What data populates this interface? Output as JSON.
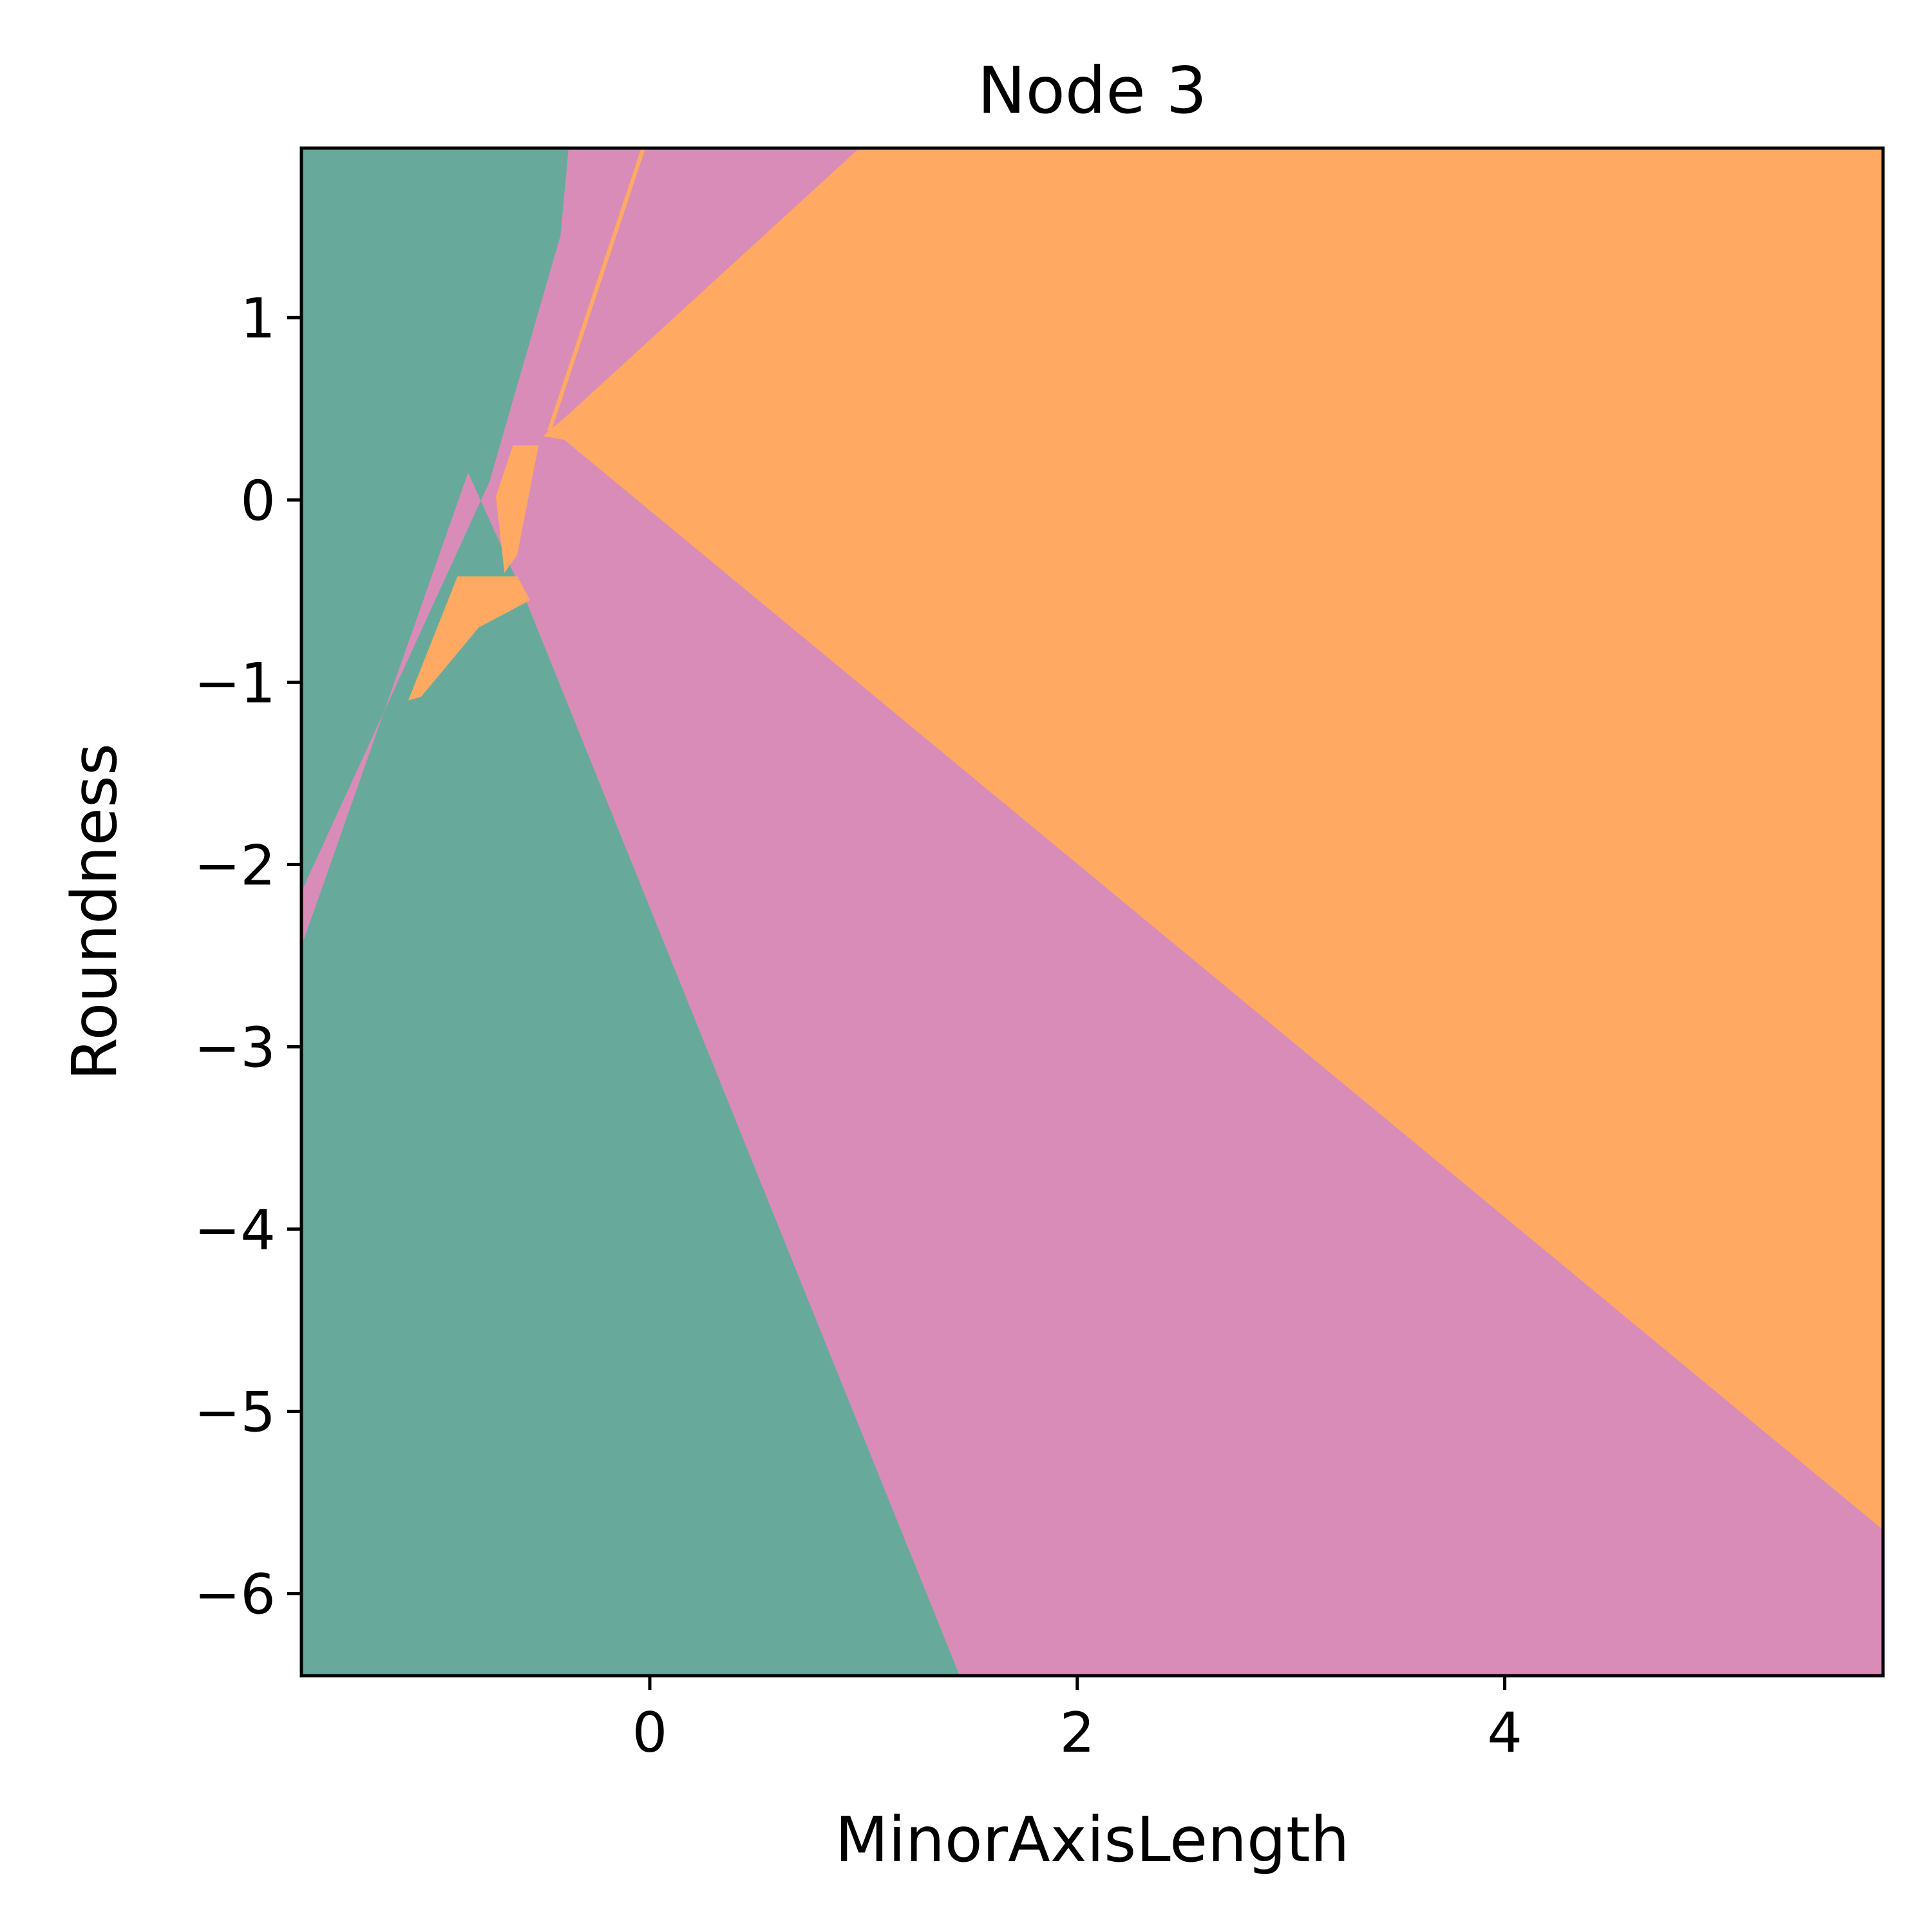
{
  "chart_data": {
    "type": "heatmap",
    "title": "Node 3",
    "xlabel": "MinorAxisLength",
    "ylabel": "Roundness",
    "xlim": [
      -1.63,
      5.77
    ],
    "ylim": [
      -6.45,
      1.93
    ],
    "x_ticks": [
      {
        "value": 0,
        "label": "0"
      },
      {
        "value": 2,
        "label": "2"
      },
      {
        "value": 4,
        "label": "4"
      }
    ],
    "y_ticks": [
      {
        "value": 1,
        "label": "1"
      },
      {
        "value": 0,
        "label": "0"
      },
      {
        "value": -1,
        "label": "−1"
      },
      {
        "value": -2,
        "label": "−2"
      },
      {
        "value": -3,
        "label": "−3"
      },
      {
        "value": -4,
        "label": "−4"
      },
      {
        "value": -5,
        "label": "−5"
      },
      {
        "value": -6,
        "label": "−6"
      }
    ],
    "grid": false,
    "legend": "none",
    "colors": {
      "teal": "#67aa9c",
      "pink": "#d98cb8",
      "orange": "#ffa962",
      "background": "#67aa9c",
      "frame": "#000000"
    },
    "regions": [
      {
        "class": "pink",
        "points": [
          [
            -1.63,
            -2.15
          ],
          [
            -0.75,
            0.1
          ],
          [
            -0.3,
            1.93
          ],
          [
            5.77,
            1.93
          ],
          [
            5.77,
            -6.45
          ],
          [
            1.45,
            -6.45
          ],
          [
            -0.58,
            -0.55
          ],
          [
            -0.85,
            0.15
          ],
          [
            -1.63,
            -2.45
          ]
        ]
      },
      {
        "class": "orange",
        "points": [
          [
            -0.5,
            0.35
          ],
          [
            -0.38,
            0.47
          ],
          [
            0.98,
            1.93
          ],
          [
            5.77,
            1.93
          ],
          [
            5.77,
            -5.65
          ],
          [
            -0.4,
            0.33
          ]
        ]
      },
      {
        "class": "pink",
        "points": [
          [
            -0.5,
            0.4
          ],
          [
            -0.38,
            1.93
          ],
          [
            0.98,
            1.93
          ],
          [
            -0.4,
            0.55
          ]
        ]
      },
      {
        "class": "orange",
        "points": [
          [
            -0.72,
            0.02
          ],
          [
            -0.64,
            0.3
          ],
          [
            -0.52,
            0.3
          ],
          [
            -0.62,
            -0.3
          ],
          [
            -0.68,
            -0.4
          ]
        ]
      },
      {
        "class": "orange",
        "points": [
          [
            -1.13,
            -1.1
          ],
          [
            -0.9,
            -0.42
          ],
          [
            -0.62,
            -0.42
          ],
          [
            -0.56,
            -0.55
          ],
          [
            -0.8,
            -0.7
          ],
          [
            -1.07,
            -1.08
          ]
        ]
      },
      {
        "class": "orange",
        "points": [
          [
            -0.48,
            0.38
          ],
          [
            -0.04,
            1.93
          ],
          [
            -0.02,
            1.93
          ],
          [
            -0.46,
            0.38
          ]
        ]
      }
    ]
  }
}
